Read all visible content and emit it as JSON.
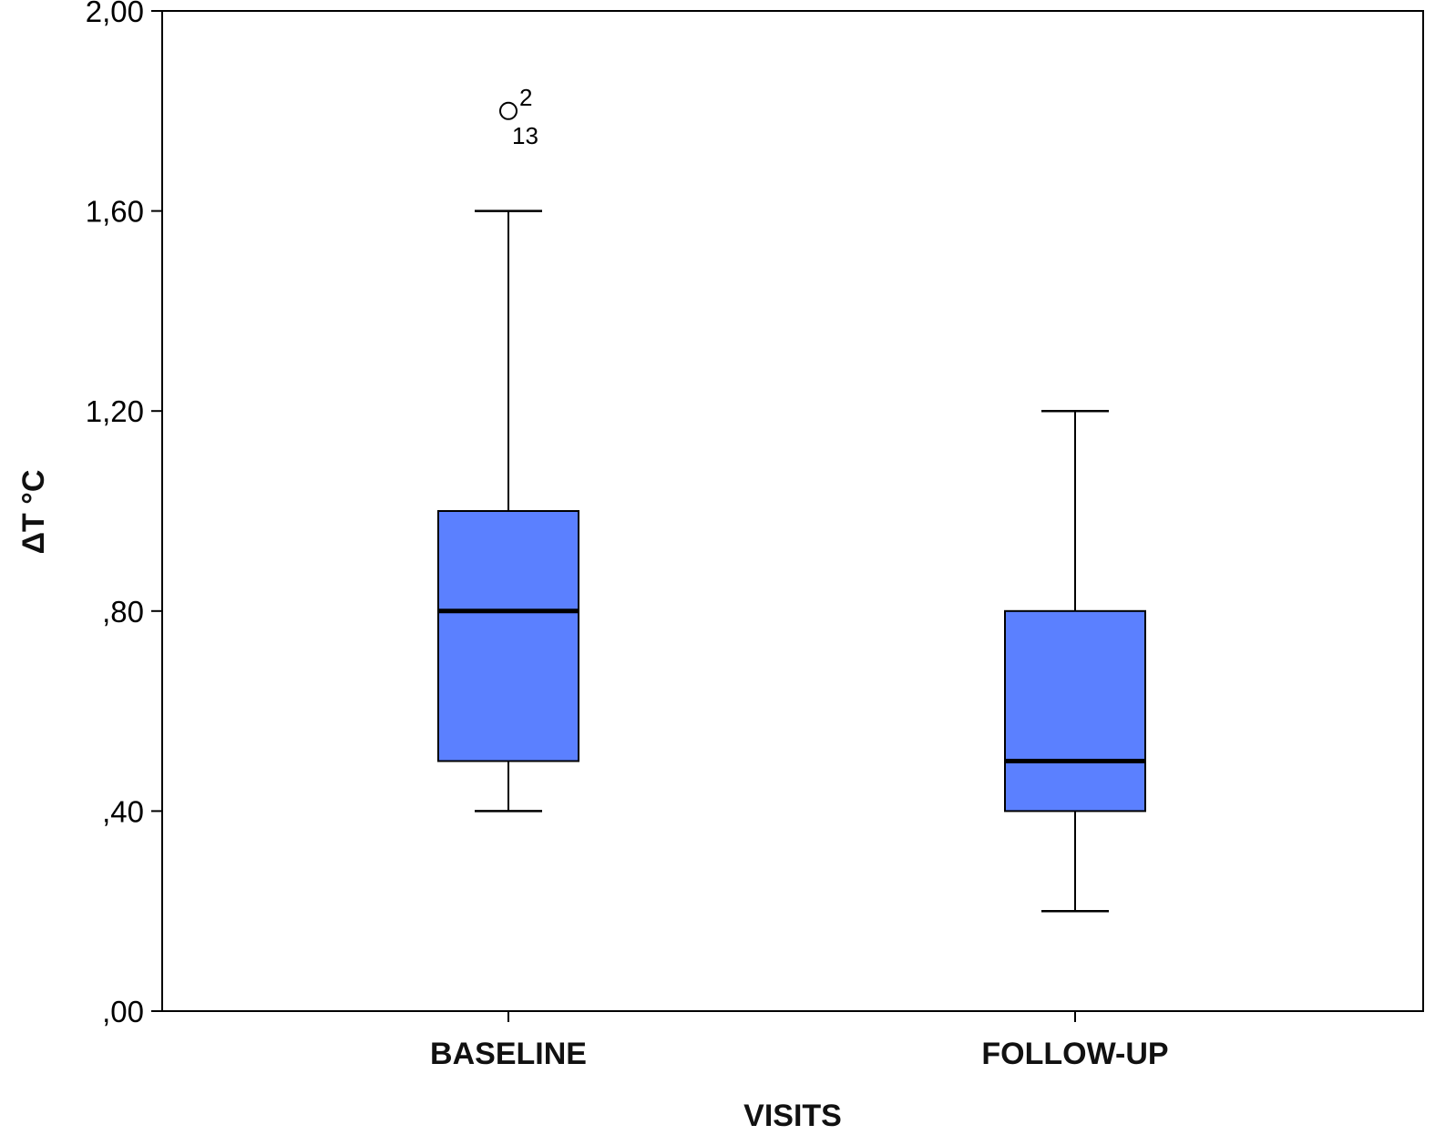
{
  "chart_data": {
    "type": "boxplot",
    "xlabel": "VISITS",
    "ylabel": "ΔT °C",
    "ylim": [
      0,
      2.0
    ],
    "y_ticks": [
      {
        "value": 0.0,
        "label": ",00"
      },
      {
        "value": 0.4,
        "label": ",40"
      },
      {
        "value": 0.8,
        "label": ",80"
      },
      {
        "value": 1.2,
        "label": "1,20"
      },
      {
        "value": 1.6,
        "label": "1,60"
      },
      {
        "value": 2.0,
        "label": "2,00"
      }
    ],
    "categories": [
      "BASELINE",
      "FOLLOW-UP"
    ],
    "boxes": [
      {
        "category": "BASELINE",
        "min": 0.4,
        "q1": 0.5,
        "median": 0.8,
        "q3": 1.0,
        "max": 1.6,
        "outliers": [
          {
            "value": 1.8,
            "labels": [
              "2",
              "13"
            ]
          }
        ]
      },
      {
        "category": "FOLLOW-UP",
        "min": 0.2,
        "q1": 0.4,
        "median": 0.5,
        "q3": 0.8,
        "max": 1.2,
        "outliers": []
      }
    ],
    "box_color": "#5b80ff",
    "grid": false,
    "legend": "none"
  }
}
